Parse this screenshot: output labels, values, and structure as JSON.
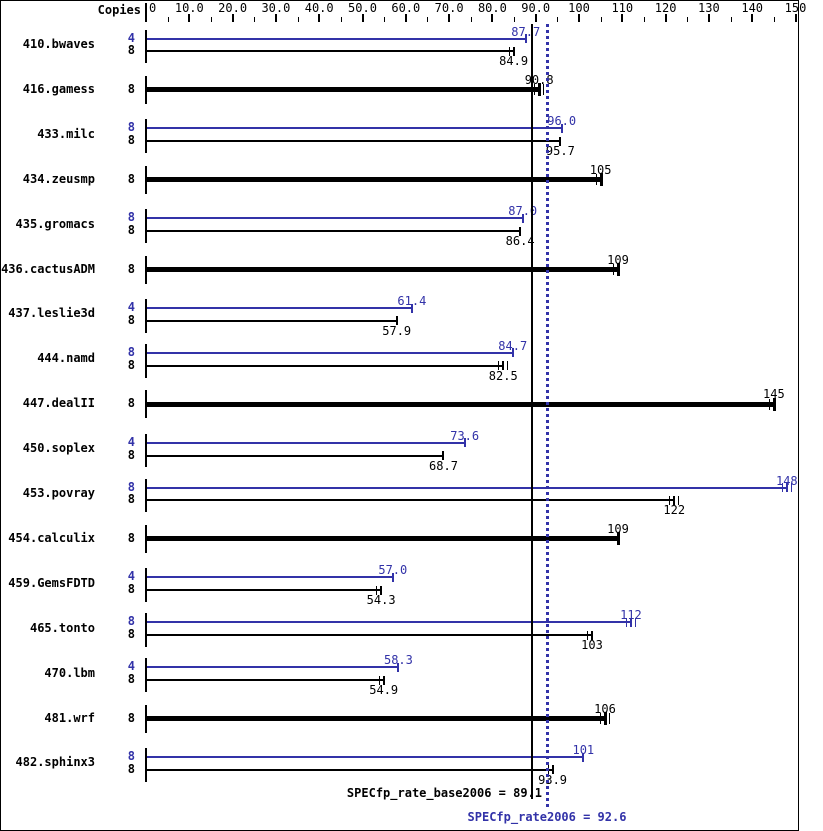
{
  "page": {
    "background": "#ffffff",
    "frame_color": "#000000"
  },
  "chart_data": {
    "type": "bar",
    "orientation": "horizontal",
    "copies_header": "Copies",
    "colors": {
      "peak": "#3232a8",
      "base": "#000000"
    },
    "axis": {
      "min": 0,
      "max": 150,
      "major_tick_step": 10,
      "minor_tick_step": 5,
      "tick_labels": [
        "0",
        "10.0",
        "20.0",
        "30.0",
        "40.0",
        "50.0",
        "60.0",
        "70.0",
        "80.0",
        "90.0",
        "100",
        "110",
        "120",
        "130",
        "140",
        "150"
      ]
    },
    "benchmarks": [
      {
        "name": "410.bwaves",
        "bars": [
          {
            "kind": "peak",
            "copies": "4",
            "value": 87.7,
            "label": "87.7",
            "extra_ticks": 0
          },
          {
            "kind": "base",
            "copies": "8",
            "value": 84.9,
            "label": "84.9",
            "extra_ticks": 1
          }
        ]
      },
      {
        "name": "416.gamess",
        "bars": [
          {
            "kind": "both",
            "copies": "8",
            "value": 90.8,
            "label": "90.8",
            "extra_ticks": 2
          }
        ]
      },
      {
        "name": "433.milc",
        "bars": [
          {
            "kind": "peak",
            "copies": "8",
            "value": 96.0,
            "label": "96.0",
            "extra_ticks": 0
          },
          {
            "kind": "base",
            "copies": "8",
            "value": 95.7,
            "label": "95.7",
            "extra_ticks": 0
          }
        ]
      },
      {
        "name": "434.zeusmp",
        "bars": [
          {
            "kind": "both",
            "copies": "8",
            "value": 105,
            "label": "105",
            "extra_ticks": 1
          }
        ]
      },
      {
        "name": "435.gromacs",
        "bars": [
          {
            "kind": "peak",
            "copies": "8",
            "value": 87.0,
            "label": "87.0",
            "extra_ticks": 0
          },
          {
            "kind": "base",
            "copies": "8",
            "value": 86.4,
            "label": "86.4",
            "extra_ticks": 0
          }
        ]
      },
      {
        "name": "436.cactusADM",
        "bars": [
          {
            "kind": "both",
            "copies": "8",
            "value": 109,
            "label": "109",
            "extra_ticks": 1
          }
        ]
      },
      {
        "name": "437.leslie3d",
        "bars": [
          {
            "kind": "peak",
            "copies": "4",
            "value": 61.4,
            "label": "61.4",
            "extra_ticks": 0
          },
          {
            "kind": "base",
            "copies": "8",
            "value": 57.9,
            "label": "57.9",
            "extra_ticks": 0
          }
        ]
      },
      {
        "name": "444.namd",
        "bars": [
          {
            "kind": "peak",
            "copies": "8",
            "value": 84.7,
            "label": "84.7",
            "extra_ticks": 0
          },
          {
            "kind": "base",
            "copies": "8",
            "value": 82.5,
            "label": "82.5",
            "extra_ticks": 2
          }
        ]
      },
      {
        "name": "447.dealII",
        "bars": [
          {
            "kind": "both",
            "copies": "8",
            "value": 145,
            "label": "145",
            "extra_ticks": 1
          }
        ]
      },
      {
        "name": "450.soplex",
        "bars": [
          {
            "kind": "peak",
            "copies": "4",
            "value": 73.6,
            "label": "73.6",
            "extra_ticks": 0
          },
          {
            "kind": "base",
            "copies": "8",
            "value": 68.7,
            "label": "68.7",
            "extra_ticks": 0
          }
        ]
      },
      {
        "name": "453.povray",
        "bars": [
          {
            "kind": "peak",
            "copies": "8",
            "value": 148,
            "label": "148",
            "extra_ticks": 2
          },
          {
            "kind": "base",
            "copies": "8",
            "value": 122,
            "label": "122",
            "extra_ticks": 2
          }
        ]
      },
      {
        "name": "454.calculix",
        "bars": [
          {
            "kind": "both",
            "copies": "8",
            "value": 109,
            "label": "109",
            "extra_ticks": 0
          }
        ]
      },
      {
        "name": "459.GemsFDTD",
        "bars": [
          {
            "kind": "peak",
            "copies": "4",
            "value": 57.0,
            "label": "57.0",
            "extra_ticks": 0
          },
          {
            "kind": "base",
            "copies": "8",
            "value": 54.3,
            "label": "54.3",
            "extra_ticks": 1
          }
        ]
      },
      {
        "name": "465.tonto",
        "bars": [
          {
            "kind": "peak",
            "copies": "8",
            "value": 112,
            "label": "112",
            "extra_ticks": 2
          },
          {
            "kind": "base",
            "copies": "8",
            "value": 103,
            "label": "103",
            "extra_ticks": 1
          }
        ]
      },
      {
        "name": "470.lbm",
        "bars": [
          {
            "kind": "peak",
            "copies": "4",
            "value": 58.3,
            "label": "58.3",
            "extra_ticks": 0
          },
          {
            "kind": "base",
            "copies": "8",
            "value": 54.9,
            "label": "54.9",
            "extra_ticks": 1
          }
        ]
      },
      {
        "name": "481.wrf",
        "bars": [
          {
            "kind": "both",
            "copies": "8",
            "value": 106,
            "label": "106",
            "extra_ticks": 2
          }
        ]
      },
      {
        "name": "482.sphinx3",
        "bars": [
          {
            "kind": "peak",
            "copies": "8",
            "value": 101,
            "label": "101",
            "extra_ticks": 0
          },
          {
            "kind": "base",
            "copies": "8",
            "value": 93.9,
            "label": "93.9",
            "extra_ticks": 1
          }
        ]
      }
    ],
    "reference_lines": [
      {
        "id": "base",
        "label": "SPECfp_rate_base2006 = 89.1",
        "value": 89.1,
        "color": "#000000",
        "style": "solid"
      },
      {
        "id": "peak",
        "label": "SPECfp_rate2006 = 92.6",
        "value": 92.6,
        "color": "#3232a8",
        "style": "dotted"
      }
    ]
  }
}
